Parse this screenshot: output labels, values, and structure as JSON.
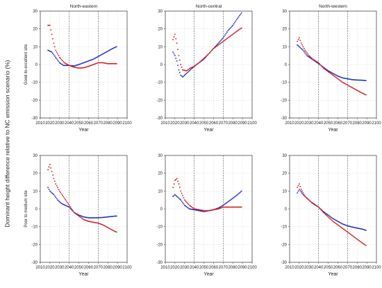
{
  "figure": {
    "ylabel": "Dominant height difference relative to NC emission scenario (%)",
    "row_labels": [
      "Good-to-excellent site",
      "Poor to medium site"
    ],
    "xlabel": "Year"
  },
  "colors": {
    "blue": "#1f2fbf",
    "red": "#d21e1e",
    "grid": "#d6d6d6",
    "vline": "#555555"
  },
  "chart_data": [
    {
      "type": "scatter",
      "title": "North-eastern",
      "row_label": "Good-to-excellent site",
      "xlabel": "Year",
      "ylabel": "Dominant height difference relative to NC emission scenario (%)",
      "xlim": [
        2010,
        2100
      ],
      "ylim": [
        -30,
        30
      ],
      "xticks": [
        2010,
        2020,
        2030,
        2040,
        2050,
        2060,
        2070,
        2080,
        2090,
        2100
      ],
      "yticks": [
        -30,
        -20,
        -10,
        0,
        10,
        20,
        30
      ],
      "vlines": [
        2040,
        2070
      ],
      "grid": true,
      "x_start": 2018,
      "x_end": 2089,
      "series": [
        {
          "color": "blue",
          "points": [
            [
              2018,
              8
            ],
            [
              2022,
              7
            ],
            [
              2026,
              4
            ],
            [
              2030,
              1
            ],
            [
              2034,
              -0.5
            ],
            [
              2040,
              -0.5
            ],
            [
              2045,
              -0.8
            ],
            [
              2050,
              0
            ],
            [
              2055,
              1
            ],
            [
              2060,
              2
            ],
            [
              2065,
              3
            ],
            [
              2070,
              4.5
            ],
            [
              2075,
              6
            ],
            [
              2080,
              7.5
            ],
            [
              2085,
              9
            ],
            [
              2089,
              10
            ]
          ]
        },
        {
          "color": "red",
          "points": [
            [
              2018,
              22
            ],
            [
              2020,
              22
            ],
            [
              2022,
              17
            ],
            [
              2024,
              12
            ],
            [
              2026,
              8
            ],
            [
              2030,
              4
            ],
            [
              2035,
              1
            ],
            [
              2040,
              -0.5
            ],
            [
              2045,
              -1.5
            ],
            [
              2050,
              -2
            ],
            [
              2055,
              -1.8
            ],
            [
              2060,
              -1
            ],
            [
              2065,
              0
            ],
            [
              2070,
              1
            ],
            [
              2075,
              1
            ],
            [
              2080,
              0.5
            ],
            [
              2085,
              0.5
            ],
            [
              2089,
              0.5
            ]
          ]
        }
      ]
    },
    {
      "type": "scatter",
      "title": "North-central",
      "row_label": "Good-to-excellent site",
      "xlabel": "Year",
      "ylabel": "Dominant height difference relative to NC emission scenario (%)",
      "xlim": [
        2010,
        2100
      ],
      "ylim": [
        -30,
        30
      ],
      "xticks": [
        2010,
        2020,
        2030,
        2040,
        2050,
        2060,
        2070,
        2080,
        2090,
        2100
      ],
      "yticks": [
        -30,
        -20,
        -10,
        0,
        10,
        20,
        30
      ],
      "vlines": [
        2040,
        2070
      ],
      "grid": true,
      "x_start": 2018,
      "x_end": 2089,
      "series": [
        {
          "color": "blue",
          "points": [
            [
              2018,
              7
            ],
            [
              2020,
              5
            ],
            [
              2022,
              2
            ],
            [
              2024,
              -3
            ],
            [
              2026,
              -6
            ],
            [
              2028,
              -7
            ],
            [
              2032,
              -5
            ],
            [
              2036,
              -3
            ],
            [
              2040,
              -1
            ],
            [
              2045,
              1
            ],
            [
              2050,
              3
            ],
            [
              2055,
              6
            ],
            [
              2060,
              9
            ],
            [
              2065,
              12
            ],
            [
              2070,
              15
            ],
            [
              2075,
              19
            ],
            [
              2080,
              22
            ],
            [
              2085,
              26
            ],
            [
              2089,
              29
            ]
          ]
        },
        {
          "color": "red",
          "points": [
            [
              2018,
              14
            ],
            [
              2020,
              17
            ],
            [
              2022,
              12
            ],
            [
              2024,
              5
            ],
            [
              2026,
              0
            ],
            [
              2028,
              -3
            ],
            [
              2032,
              -3.5
            ],
            [
              2036,
              -2
            ],
            [
              2040,
              -1
            ],
            [
              2045,
              1
            ],
            [
              2050,
              3.5
            ],
            [
              2055,
              6
            ],
            [
              2060,
              9
            ],
            [
              2065,
              11
            ],
            [
              2070,
              13
            ],
            [
              2075,
              15
            ],
            [
              2080,
              17
            ],
            [
              2085,
              19
            ],
            [
              2089,
              20.5
            ]
          ]
        }
      ]
    },
    {
      "type": "scatter",
      "title": "North-western",
      "row_label": "Good-to-excellent site",
      "xlabel": "Year",
      "ylabel": "Dominant height difference relative to NC emission scenario (%)",
      "xlim": [
        2010,
        2100
      ],
      "ylim": [
        -30,
        30
      ],
      "xticks": [
        2010,
        2020,
        2030,
        2040,
        2050,
        2060,
        2070,
        2080,
        2090,
        2100
      ],
      "yticks": [
        -30,
        -20,
        -10,
        0,
        10,
        20,
        30
      ],
      "vlines": [
        2040,
        2070
      ],
      "grid": true,
      "x_start": 2018,
      "x_end": 2089,
      "series": [
        {
          "color": "blue",
          "points": [
            [
              2018,
              11
            ],
            [
              2020,
              10
            ],
            [
              2024,
              8
            ],
            [
              2028,
              5
            ],
            [
              2032,
              3.5
            ],
            [
              2036,
              2
            ],
            [
              2040,
              0.5
            ],
            [
              2045,
              -1.5
            ],
            [
              2050,
              -3.5
            ],
            [
              2055,
              -5
            ],
            [
              2060,
              -6.5
            ],
            [
              2065,
              -7.5
            ],
            [
              2070,
              -8
            ],
            [
              2075,
              -8.5
            ],
            [
              2080,
              -8.7
            ],
            [
              2085,
              -8.8
            ],
            [
              2089,
              -9
            ]
          ]
        },
        {
          "color": "red",
          "points": [
            [
              2018,
              13
            ],
            [
              2020,
              15
            ],
            [
              2022,
              12
            ],
            [
              2026,
              8
            ],
            [
              2030,
              5
            ],
            [
              2034,
              3
            ],
            [
              2040,
              1
            ],
            [
              2045,
              -2
            ],
            [
              2050,
              -4
            ],
            [
              2055,
              -6
            ],
            [
              2060,
              -8
            ],
            [
              2065,
              -10
            ],
            [
              2070,
              -11.5
            ],
            [
              2075,
              -13
            ],
            [
              2080,
              -14.5
            ],
            [
              2085,
              -16
            ],
            [
              2089,
              -17
            ]
          ]
        }
      ]
    },
    {
      "type": "scatter",
      "title": "",
      "row_label": "Poor to medium site",
      "xlabel": "Year",
      "ylabel": "Dominant height difference relative to NC emission scenario (%)",
      "xlim": [
        2010,
        2100
      ],
      "ylim": [
        -30,
        30
      ],
      "xticks": [
        2010,
        2020,
        2030,
        2040,
        2050,
        2060,
        2070,
        2080,
        2090,
        2100
      ],
      "yticks": [
        -30,
        -20,
        -10,
        0,
        10,
        20,
        30
      ],
      "vlines": [
        2040,
        2070
      ],
      "grid": true,
      "x_start": 2018,
      "x_end": 2089,
      "series": [
        {
          "color": "blue",
          "points": [
            [
              2018,
              12
            ],
            [
              2020,
              10
            ],
            [
              2024,
              8
            ],
            [
              2028,
              5
            ],
            [
              2032,
              3
            ],
            [
              2036,
              2
            ],
            [
              2040,
              1
            ],
            [
              2045,
              -2
            ],
            [
              2050,
              -3.5
            ],
            [
              2055,
              -4.5
            ],
            [
              2060,
              -5
            ],
            [
              2065,
              -5
            ],
            [
              2070,
              -5
            ],
            [
              2075,
              -4.8
            ],
            [
              2080,
              -4.5
            ],
            [
              2085,
              -4.2
            ],
            [
              2089,
              -4
            ]
          ]
        },
        {
          "color": "red",
          "points": [
            [
              2018,
              22
            ],
            [
              2020,
              25
            ],
            [
              2022,
              21
            ],
            [
              2024,
              17
            ],
            [
              2026,
              14
            ],
            [
              2030,
              10
            ],
            [
              2035,
              6
            ],
            [
              2040,
              2
            ],
            [
              2045,
              -2
            ],
            [
              2050,
              -4
            ],
            [
              2055,
              -6
            ],
            [
              2060,
              -7
            ],
            [
              2065,
              -7.5
            ],
            [
              2070,
              -8
            ],
            [
              2075,
              -9
            ],
            [
              2080,
              -10.5
            ],
            [
              2085,
              -12
            ],
            [
              2089,
              -13
            ]
          ]
        }
      ]
    },
    {
      "type": "scatter",
      "title": "",
      "row_label": "Poor to medium site",
      "xlabel": "Year",
      "ylabel": "Dominant height difference relative to NC emission scenario (%)",
      "xlim": [
        2010,
        2100
      ],
      "ylim": [
        -30,
        30
      ],
      "xticks": [
        2010,
        2020,
        2030,
        2040,
        2050,
        2060,
        2070,
        2080,
        2090,
        2100
      ],
      "yticks": [
        -30,
        -20,
        -10,
        0,
        10,
        20,
        30
      ],
      "vlines": [
        2040,
        2070
      ],
      "grid": true,
      "x_start": 2018,
      "x_end": 2089,
      "series": [
        {
          "color": "blue",
          "points": [
            [
              2018,
              7
            ],
            [
              2020,
              8
            ],
            [
              2022,
              7
            ],
            [
              2026,
              5
            ],
            [
              2030,
              2
            ],
            [
              2035,
              0
            ],
            [
              2040,
              -0.5
            ],
            [
              2045,
              -1
            ],
            [
              2050,
              -1.5
            ],
            [
              2055,
              -1
            ],
            [
              2060,
              -0.5
            ],
            [
              2065,
              0.5
            ],
            [
              2070,
              2
            ],
            [
              2075,
              4
            ],
            [
              2080,
              6
            ],
            [
              2085,
              8
            ],
            [
              2089,
              10
            ]
          ]
        },
        {
          "color": "red",
          "points": [
            [
              2018,
              12
            ],
            [
              2020,
              16
            ],
            [
              2022,
              17
            ],
            [
              2024,
              14
            ],
            [
              2026,
              10
            ],
            [
              2030,
              5
            ],
            [
              2035,
              2
            ],
            [
              2040,
              0
            ],
            [
              2045,
              -0.5
            ],
            [
              2050,
              -1
            ],
            [
              2055,
              -1
            ],
            [
              2060,
              -0.5
            ],
            [
              2065,
              0
            ],
            [
              2070,
              1
            ],
            [
              2075,
              1
            ],
            [
              2080,
              1
            ],
            [
              2085,
              1
            ],
            [
              2089,
              1
            ]
          ]
        }
      ]
    },
    {
      "type": "scatter",
      "title": "",
      "row_label": "Poor to medium site",
      "xlabel": "Year",
      "ylabel": "Dominant height difference relative to NC emission scenario (%)",
      "xlim": [
        2010,
        2100
      ],
      "ylim": [
        -30,
        30
      ],
      "xticks": [
        2010,
        2020,
        2030,
        2040,
        2050,
        2060,
        2070,
        2080,
        2090,
        2100
      ],
      "yticks": [
        -30,
        -20,
        -10,
        0,
        10,
        20,
        30
      ],
      "vlines": [
        2040,
        2070
      ],
      "grid": true,
      "x_start": 2018,
      "x_end": 2089,
      "series": [
        {
          "color": "blue",
          "points": [
            [
              2018,
              9
            ],
            [
              2020,
              11
            ],
            [
              2024,
              8
            ],
            [
              2028,
              6
            ],
            [
              2032,
              4
            ],
            [
              2036,
              2.5
            ],
            [
              2040,
              1
            ],
            [
              2045,
              -1.5
            ],
            [
              2050,
              -3.5
            ],
            [
              2055,
              -5.5
            ],
            [
              2060,
              -7
            ],
            [
              2065,
              -8.5
            ],
            [
              2070,
              -9.5
            ],
            [
              2075,
              -10.2
            ],
            [
              2080,
              -10.8
            ],
            [
              2085,
              -11.3
            ],
            [
              2089,
              -12
            ]
          ]
        },
        {
          "color": "red",
          "points": [
            [
              2018,
              12
            ],
            [
              2020,
              14
            ],
            [
              2022,
              11
            ],
            [
              2026,
              7
            ],
            [
              2030,
              5
            ],
            [
              2034,
              3
            ],
            [
              2040,
              1
            ],
            [
              2045,
              -2
            ],
            [
              2050,
              -4.5
            ],
            [
              2055,
              -7
            ],
            [
              2060,
              -9
            ],
            [
              2065,
              -11
            ],
            [
              2070,
              -13
            ],
            [
              2075,
              -15
            ],
            [
              2080,
              -17
            ],
            [
              2085,
              -19
            ],
            [
              2089,
              -20.5
            ]
          ]
        }
      ]
    }
  ]
}
